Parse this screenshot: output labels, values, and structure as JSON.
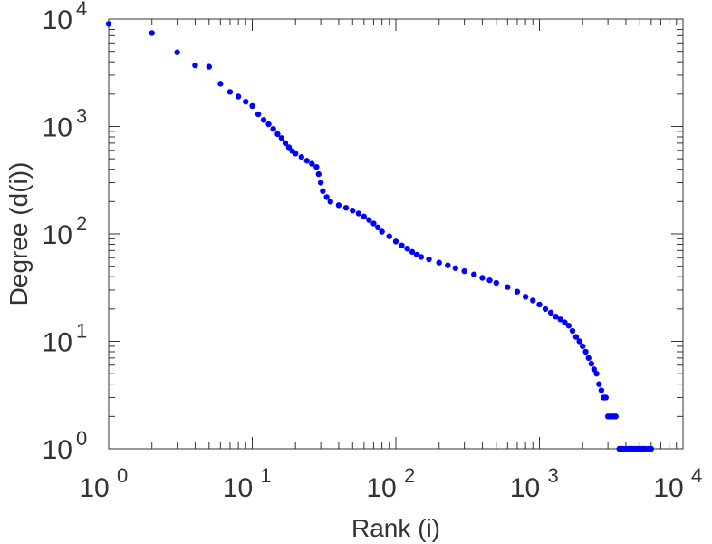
{
  "chart_data": {
    "type": "scatter",
    "xlabel": "Rank (i)",
    "ylabel": "Degree (d(i))",
    "xscale": "log",
    "yscale": "log",
    "xlim": [
      1,
      10000
    ],
    "ylim": [
      1,
      10000
    ],
    "grid": false,
    "marker_color": "#0000ff",
    "x_ticks": [
      {
        "base": "10",
        "exp": "0"
      },
      {
        "base": "10",
        "exp": "1"
      },
      {
        "base": "10",
        "exp": "2"
      },
      {
        "base": "10",
        "exp": "3"
      },
      {
        "base": "10",
        "exp": "4"
      }
    ],
    "y_ticks": [
      {
        "base": "10",
        "exp": "0"
      },
      {
        "base": "10",
        "exp": "1"
      },
      {
        "base": "10",
        "exp": "2"
      },
      {
        "base": "10",
        "exp": "3"
      },
      {
        "base": "10",
        "exp": "4"
      }
    ],
    "series": [
      {
        "points": [
          [
            1,
            9000
          ],
          [
            2,
            7400
          ],
          [
            3,
            4900
          ],
          [
            4,
            3700
          ],
          [
            5,
            3600
          ],
          [
            6,
            2500
          ],
          [
            7,
            2100
          ],
          [
            8,
            1900
          ],
          [
            9,
            1700
          ],
          [
            10,
            1550
          ],
          [
            11,
            1300
          ],
          [
            12,
            1150
          ],
          [
            13,
            1050
          ],
          [
            14,
            950
          ],
          [
            15,
            850
          ],
          [
            16,
            780
          ],
          [
            17,
            700
          ],
          [
            18,
            640
          ],
          [
            19,
            590
          ],
          [
            20,
            560
          ],
          [
            22,
            520
          ],
          [
            24,
            480
          ],
          [
            26,
            450
          ],
          [
            28,
            420
          ],
          [
            29,
            360
          ],
          [
            30,
            300
          ],
          [
            31,
            250
          ],
          [
            33,
            220
          ],
          [
            35,
            200
          ],
          [
            40,
            185
          ],
          [
            45,
            175
          ],
          [
            50,
            165
          ],
          [
            55,
            155
          ],
          [
            60,
            145
          ],
          [
            65,
            135
          ],
          [
            70,
            125
          ],
          [
            75,
            115
          ],
          [
            80,
            105
          ],
          [
            90,
            95
          ],
          [
            100,
            85
          ],
          [
            110,
            78
          ],
          [
            120,
            73
          ],
          [
            130,
            68
          ],
          [
            140,
            64
          ],
          [
            150,
            61
          ],
          [
            170,
            58
          ],
          [
            200,
            54
          ],
          [
            230,
            51
          ],
          [
            260,
            48
          ],
          [
            300,
            45
          ],
          [
            350,
            42
          ],
          [
            400,
            39
          ],
          [
            450,
            37
          ],
          [
            500,
            35
          ],
          [
            600,
            32
          ],
          [
            700,
            29
          ],
          [
            800,
            26
          ],
          [
            900,
            24
          ],
          [
            1000,
            22
          ],
          [
            1100,
            20
          ],
          [
            1200,
            18.5
          ],
          [
            1300,
            17
          ],
          [
            1400,
            16
          ],
          [
            1500,
            15
          ],
          [
            1600,
            14
          ],
          [
            1700,
            12.5
          ],
          [
            1800,
            11
          ],
          [
            1900,
            10
          ],
          [
            2000,
            9
          ],
          [
            2100,
            8
          ],
          [
            2200,
            7
          ],
          [
            2300,
            6.2
          ],
          [
            2400,
            5.5
          ],
          [
            2500,
            5
          ],
          [
            2600,
            4
          ],
          [
            2700,
            3.5
          ],
          [
            2800,
            3
          ],
          [
            2900,
            3
          ],
          [
            3000,
            2
          ],
          [
            3100,
            2
          ],
          [
            3200,
            2
          ],
          [
            3300,
            2
          ],
          [
            3400,
            2
          ],
          [
            3600,
            1
          ],
          [
            3800,
            1
          ],
          [
            4000,
            1
          ],
          [
            4200,
            1
          ],
          [
            4400,
            1
          ],
          [
            4600,
            1
          ],
          [
            4800,
            1
          ],
          [
            5000,
            1
          ],
          [
            5200,
            1
          ],
          [
            5400,
            1
          ],
          [
            5700,
            1
          ],
          [
            6000,
            1
          ]
        ]
      }
    ]
  }
}
